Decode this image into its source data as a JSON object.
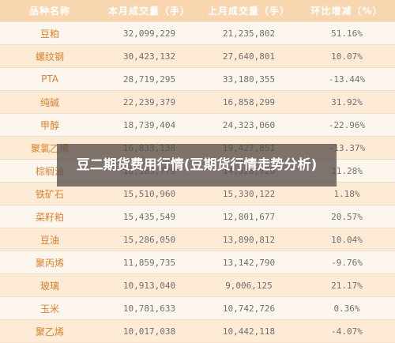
{
  "table": {
    "headers": [
      "品种名称",
      "本月成交量（手）",
      "上月成交量（手）",
      "环比增减（%）"
    ],
    "rows": [
      [
        "豆粕",
        "32,099,229",
        "21,235,802",
        "51.16%"
      ],
      [
        "螺纹钢",
        "30,423,132",
        "27,640,801",
        "10.07%"
      ],
      [
        "PTA",
        "28,719,295",
        "33,180,355",
        "-13.44%"
      ],
      [
        "纯碱",
        "22,239,379",
        "16,858,299",
        "31.92%"
      ],
      [
        "甲醇",
        "18,739,404",
        "24,323,060",
        "-22.96%"
      ],
      [
        "聚氯乙烯",
        "16,833,138",
        "19,427,851",
        "-13.37%"
      ],
      [
        "棕榈油",
        "16,165,779",
        "14,526,728",
        "11.28%"
      ],
      [
        "铁矿石",
        "15,510,960",
        "15,330,122",
        "1.18%"
      ],
      [
        "菜籽粕",
        "15,435,549",
        "12,801,677",
        "20.57%"
      ],
      [
        "豆油",
        "15,286,050",
        "13,890,812",
        "10.04%"
      ],
      [
        "聚丙烯",
        "11,859,735",
        "13,142,790",
        "-9.76%"
      ],
      [
        "玻璃",
        "10,913,040",
        "9,006,125",
        "21.17%"
      ],
      [
        "玉米",
        "10,781,633",
        "10,742,726",
        "0.36%"
      ],
      [
        "聚乙烯",
        "10,017,038",
        "10,442,118",
        "-4.07%"
      ]
    ]
  },
  "overlay": {
    "title": "豆二期货费用行情(豆期货行情走势分析)"
  },
  "colors": {
    "header_bg": "#f7d6b0",
    "row_alt": "#fdebd6",
    "row_plain": "#fdf6ee",
    "name_text": "#d9822b",
    "overlay_bg": "rgba(90,80,75,0.78)"
  }
}
